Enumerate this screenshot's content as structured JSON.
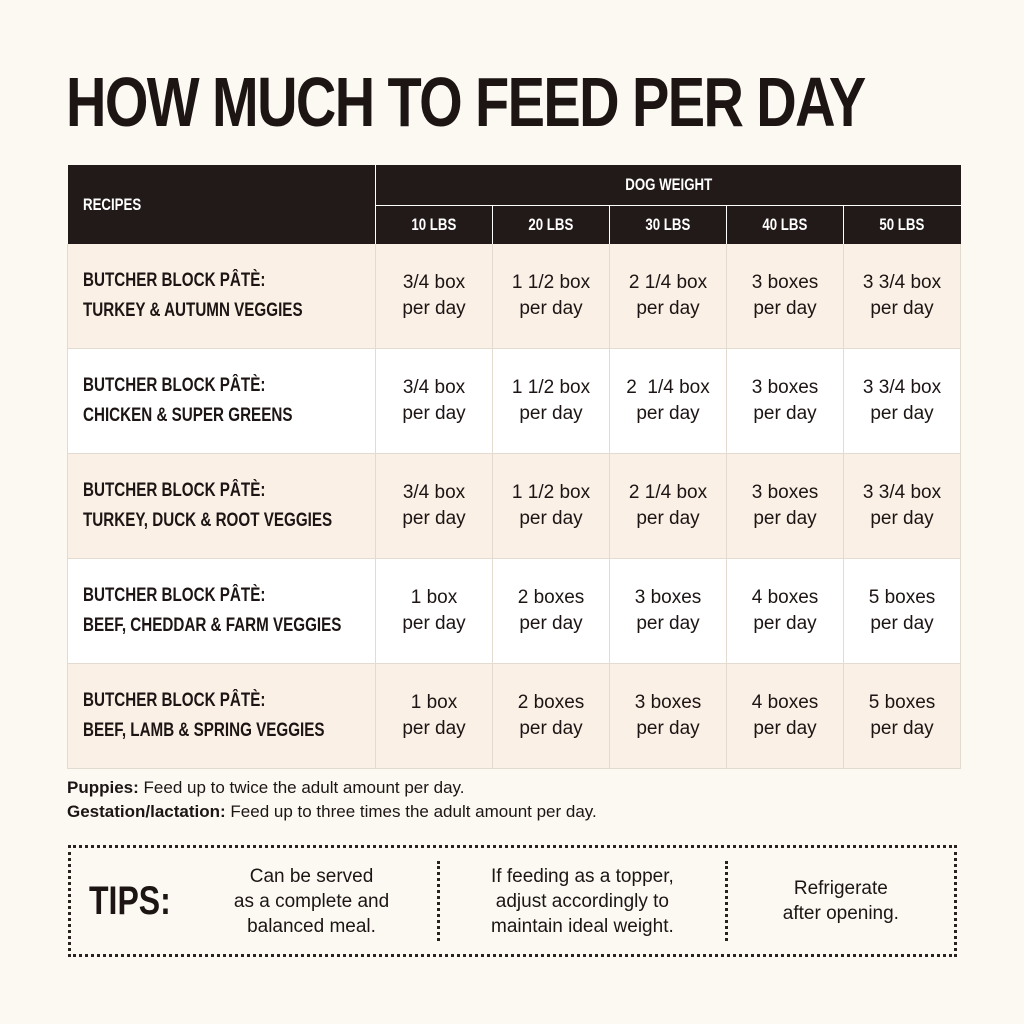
{
  "title": "HOW MUCH TO FEED PER DAY",
  "table": {
    "recipes_header": "RECIPES",
    "weight_group_header": "DOG WEIGHT",
    "weights": [
      "10 LBS",
      "20 LBS",
      "30 LBS",
      "40 LBS",
      "50 LBS"
    ],
    "rows": [
      {
        "recipe_line1": "BUTCHER BLOCK PÂTÈ:",
        "recipe_line2": "TURKEY & AUTUMN VEGGIES",
        "cells": [
          {
            "amount": "3/4 box",
            "unit": "per day"
          },
          {
            "amount": "1 1/2 box",
            "unit": "per day"
          },
          {
            "amount": "2 1/4 box",
            "unit": "per day"
          },
          {
            "amount": "3 boxes",
            "unit": "per day"
          },
          {
            "amount": "3 3/4 box",
            "unit": "per day"
          }
        ]
      },
      {
        "recipe_line1": "BUTCHER BLOCK PÂTÈ:",
        "recipe_line2": "CHICKEN & SUPER GREENS",
        "cells": [
          {
            "amount": "3/4 box",
            "unit": "per day"
          },
          {
            "amount": "1 1/2 box",
            "unit": "per day"
          },
          {
            "amount": "2  1/4 box",
            "unit": "per day"
          },
          {
            "amount": "3 boxes",
            "unit": "per day"
          },
          {
            "amount": "3 3/4 box",
            "unit": "per day"
          }
        ]
      },
      {
        "recipe_line1": "BUTCHER BLOCK PÂTÈ:",
        "recipe_line2": "TURKEY, DUCK & ROOT VEGGIES",
        "cells": [
          {
            "amount": "3/4 box",
            "unit": "per day"
          },
          {
            "amount": "1 1/2 box",
            "unit": "per day"
          },
          {
            "amount": "2 1/4 box",
            "unit": "per day"
          },
          {
            "amount": "3 boxes",
            "unit": "per day"
          },
          {
            "amount": "3 3/4 box",
            "unit": "per day"
          }
        ]
      },
      {
        "recipe_line1": "BUTCHER BLOCK PÂTÈ:",
        "recipe_line2": "BEEF, CHEDDAR & FARM VEGGIES",
        "cells": [
          {
            "amount": "1 box",
            "unit": "per day"
          },
          {
            "amount": "2 boxes",
            "unit": "per day"
          },
          {
            "amount": "3 boxes",
            "unit": "per day"
          },
          {
            "amount": "4 boxes",
            "unit": "per day"
          },
          {
            "amount": "5 boxes",
            "unit": "per day"
          }
        ]
      },
      {
        "recipe_line1": "BUTCHER BLOCK PÂTÈ:",
        "recipe_line2": "BEEF, LAMB & SPRING VEGGIES",
        "cells": [
          {
            "amount": "1 box",
            "unit": "per day"
          },
          {
            "amount": "2 boxes",
            "unit": "per day"
          },
          {
            "amount": "3 boxes",
            "unit": "per day"
          },
          {
            "amount": "4 boxes",
            "unit": "per day"
          },
          {
            "amount": "5 boxes",
            "unit": "per day"
          }
        ]
      }
    ]
  },
  "notes": {
    "puppies_label": "Puppies:",
    "puppies_text": " Feed up to twice the adult amount per day.",
    "gestation_label": "Gestation/lactation:",
    "gestation_text": " Feed up to three times the adult amount per day."
  },
  "tips": {
    "label": "TIPS:",
    "items": [
      {
        "line1": "Can be served",
        "line2": "as a complete and",
        "line3": "balanced meal."
      },
      {
        "line1": "If feeding as a topper,",
        "line2": "adjust accordingly to",
        "line3": "maintain ideal weight."
      },
      {
        "line1": "Refrigerate",
        "line2": "after opening."
      }
    ]
  },
  "colors": {
    "header_bg": "#221a19",
    "row_alt_bg": "#fbf0e6",
    "page_bg": "#fcf9f3"
  }
}
